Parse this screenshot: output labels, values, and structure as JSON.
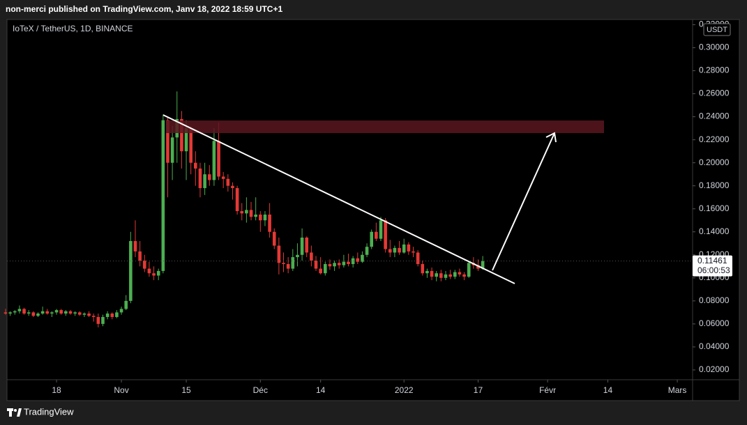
{
  "header": "non-merci published on TradingView.com, Janv 18, 2022 18:59 UTC+1",
  "footer": "TradingView",
  "chart_data": {
    "type": "candlestick",
    "title": "IoTeX / TetherUS, 1D, BINANCE",
    "currency": "USDT",
    "up_color": "#4caf50",
    "down_color": "#e53935",
    "grid": false,
    "last_price": 0.11461,
    "countdown": "06:00:53",
    "xlim": [
      -85.7,
      62.3
    ],
    "ylim": [
      0.0115,
      0.3245
    ],
    "xticks": [
      {
        "value": -75,
        "label": "18"
      },
      {
        "value": -61,
        "label": "Nov"
      },
      {
        "value": -47,
        "label": "15"
      },
      {
        "value": -31,
        "label": "Déc"
      },
      {
        "value": -18,
        "label": "14"
      },
      {
        "value": 0,
        "label": "2022"
      },
      {
        "value": 16,
        "label": "17"
      },
      {
        "value": 31,
        "label": "Févr"
      },
      {
        "value": 44,
        "label": "14"
      },
      {
        "value": 59,
        "label": "Mars"
      }
    ],
    "yticks": [
      {
        "value": 0.32,
        "label": "0.32000"
      },
      {
        "value": 0.3,
        "label": "0.30000"
      },
      {
        "value": 0.28,
        "label": "0.28000"
      },
      {
        "value": 0.26,
        "label": "0.26000"
      },
      {
        "value": 0.24,
        "label": "0.24000"
      },
      {
        "value": 0.22,
        "label": "0.22000"
      },
      {
        "value": 0.2,
        "label": "0.20000"
      },
      {
        "value": 0.18,
        "label": "0.18000"
      },
      {
        "value": 0.16,
        "label": "0.16000"
      },
      {
        "value": 0.14,
        "label": "0.14000"
      },
      {
        "value": 0.12,
        "label": "0.12000"
      },
      {
        "value": 0.1,
        "label": "0.10000"
      },
      {
        "value": 0.08,
        "label": "0.08000"
      },
      {
        "value": 0.06,
        "label": "0.06000"
      },
      {
        "value": 0.04,
        "label": "0.04000"
      },
      {
        "value": 0.02,
        "label": "0.02000"
      }
    ],
    "x": [
      -86,
      -85,
      -84,
      -83,
      -82,
      -81,
      -80,
      -79,
      -78,
      -77,
      -76,
      -75,
      -74,
      -73,
      -72,
      -71,
      -70,
      -69,
      -68,
      -67,
      -66,
      -65,
      -64,
      -63,
      -62,
      -61,
      -60,
      -59,
      -58,
      -57,
      -56,
      -55,
      -54,
      -53,
      -52,
      -51,
      -50,
      -49,
      -48,
      -47,
      -46,
      -45,
      -44,
      -43,
      -42,
      -41,
      -40,
      -39,
      -38,
      -37,
      -36,
      -35,
      -34,
      -33,
      -32,
      -31,
      -30,
      -29,
      -28,
      -27,
      -26,
      -25,
      -24,
      -23,
      -22,
      -21,
      -20,
      -19,
      -18,
      -17,
      -16,
      -15,
      -14,
      -13,
      -12,
      -11,
      -10,
      -9,
      -8,
      -7,
      -6,
      -5,
      -4,
      -3,
      -2,
      -1,
      0,
      1,
      2,
      3,
      4,
      5,
      6,
      7,
      8,
      9,
      10,
      11,
      12,
      13,
      14,
      15,
      16,
      17
    ],
    "open": [
      0.07,
      0.069,
      0.07,
      0.071,
      0.073,
      0.069,
      0.07,
      0.067,
      0.069,
      0.071,
      0.069,
      0.07,
      0.072,
      0.069,
      0.071,
      0.069,
      0.07,
      0.068,
      0.069,
      0.067,
      0.066,
      0.06,
      0.066,
      0.069,
      0.066,
      0.07,
      0.073,
      0.08,
      0.132,
      0.123,
      0.115,
      0.108,
      0.104,
      0.102,
      0.106,
      0.237,
      0.2,
      0.222,
      0.238,
      0.21,
      0.23,
      0.2,
      0.195,
      0.178,
      0.19,
      0.185,
      0.219,
      0.188,
      0.186,
      0.18,
      0.178,
      0.158,
      0.156,
      0.159,
      0.153,
      0.155,
      0.15,
      0.155,
      0.14,
      0.128,
      0.113,
      0.112,
      0.108,
      0.118,
      0.12,
      0.135,
      0.122,
      0.115,
      0.108,
      0.104,
      0.112,
      0.11,
      0.113,
      0.111,
      0.114,
      0.112,
      0.117,
      0.114,
      0.12,
      0.127,
      0.14,
      0.134,
      0.15,
      0.125,
      0.122,
      0.126,
      0.122,
      0.129,
      0.123,
      0.122,
      0.112,
      0.104,
      0.106,
      0.101,
      0.104,
      0.1,
      0.103,
      0.101,
      0.105,
      0.103,
      0.101,
      0.113,
      0.111,
      0.108
    ],
    "high": [
      0.073,
      0.071,
      0.072,
      0.076,
      0.074,
      0.072,
      0.071,
      0.07,
      0.075,
      0.073,
      0.071,
      0.073,
      0.073,
      0.072,
      0.072,
      0.071,
      0.071,
      0.07,
      0.071,
      0.069,
      0.069,
      0.068,
      0.071,
      0.07,
      0.072,
      0.075,
      0.085,
      0.14,
      0.15,
      0.132,
      0.12,
      0.114,
      0.11,
      0.108,
      0.242,
      0.24,
      0.232,
      0.262,
      0.245,
      0.237,
      0.232,
      0.21,
      0.2,
      0.2,
      0.198,
      0.23,
      0.235,
      0.192,
      0.19,
      0.183,
      0.18,
      0.165,
      0.17,
      0.166,
      0.17,
      0.158,
      0.158,
      0.165,
      0.143,
      0.135,
      0.122,
      0.118,
      0.125,
      0.13,
      0.143,
      0.136,
      0.128,
      0.119,
      0.118,
      0.114,
      0.116,
      0.115,
      0.116,
      0.12,
      0.121,
      0.119,
      0.122,
      0.123,
      0.13,
      0.142,
      0.148,
      0.153,
      0.152,
      0.133,
      0.128,
      0.132,
      0.134,
      0.131,
      0.127,
      0.124,
      0.115,
      0.108,
      0.109,
      0.106,
      0.107,
      0.106,
      0.107,
      0.107,
      0.108,
      0.105,
      0.114,
      0.118,
      0.116,
      0.119
    ],
    "low": [
      0.068,
      0.067,
      0.068,
      0.069,
      0.068,
      0.067,
      0.066,
      0.066,
      0.068,
      0.068,
      0.066,
      0.068,
      0.068,
      0.067,
      0.068,
      0.067,
      0.067,
      0.066,
      0.066,
      0.062,
      0.057,
      0.058,
      0.064,
      0.064,
      0.065,
      0.068,
      0.072,
      0.078,
      0.118,
      0.11,
      0.105,
      0.101,
      0.098,
      0.098,
      0.104,
      0.17,
      0.185,
      0.2,
      0.195,
      0.185,
      0.19,
      0.18,
      0.17,
      0.172,
      0.18,
      0.18,
      0.185,
      0.178,
      0.175,
      0.168,
      0.155,
      0.15,
      0.148,
      0.15,
      0.15,
      0.14,
      0.145,
      0.135,
      0.125,
      0.103,
      0.105,
      0.104,
      0.106,
      0.11,
      0.115,
      0.118,
      0.11,
      0.106,
      0.103,
      0.102,
      0.107,
      0.106,
      0.108,
      0.109,
      0.11,
      0.109,
      0.112,
      0.113,
      0.118,
      0.125,
      0.132,
      0.132,
      0.122,
      0.118,
      0.118,
      0.12,
      0.121,
      0.12,
      0.118,
      0.11,
      0.102,
      0.1,
      0.098,
      0.097,
      0.097,
      0.098,
      0.099,
      0.099,
      0.101,
      0.098,
      0.1,
      0.108,
      0.106,
      0.107
    ],
    "close": [
      0.069,
      0.07,
      0.071,
      0.073,
      0.069,
      0.07,
      0.067,
      0.069,
      0.071,
      0.069,
      0.07,
      0.072,
      0.069,
      0.071,
      0.069,
      0.07,
      0.068,
      0.069,
      0.067,
      0.066,
      0.06,
      0.066,
      0.069,
      0.066,
      0.07,
      0.073,
      0.08,
      0.132,
      0.123,
      0.115,
      0.108,
      0.104,
      0.102,
      0.106,
      0.237,
      0.2,
      0.222,
      0.238,
      0.21,
      0.23,
      0.2,
      0.195,
      0.178,
      0.19,
      0.185,
      0.219,
      0.188,
      0.186,
      0.18,
      0.178,
      0.158,
      0.156,
      0.159,
      0.153,
      0.155,
      0.15,
      0.155,
      0.14,
      0.128,
      0.113,
      0.112,
      0.108,
      0.118,
      0.12,
      0.135,
      0.122,
      0.115,
      0.108,
      0.104,
      0.112,
      0.11,
      0.113,
      0.111,
      0.114,
      0.112,
      0.117,
      0.114,
      0.12,
      0.127,
      0.14,
      0.134,
      0.15,
      0.125,
      0.122,
      0.126,
      0.122,
      0.129,
      0.123,
      0.122,
      0.112,
      0.104,
      0.106,
      0.101,
      0.104,
      0.1,
      0.103,
      0.101,
      0.105,
      0.103,
      0.101,
      0.113,
      0.111,
      0.108,
      0.1146
    ]
  }
}
